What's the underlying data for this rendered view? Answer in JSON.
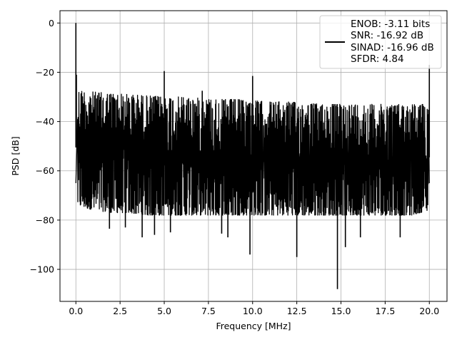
{
  "chart_data": {
    "type": "line",
    "title": "",
    "xlabel": "Frequency [MHz]",
    "ylabel": "PSD [dB]",
    "xlim": [
      -0.9,
      21.0
    ],
    "ylim": [
      -113,
      5
    ],
    "xticks": [
      0.0,
      2.5,
      5.0,
      7.5,
      10.0,
      12.5,
      15.0,
      17.5,
      20.0
    ],
    "xtick_labels": [
      "0.0",
      "2.5",
      "5.0",
      "7.5",
      "10.0",
      "12.5",
      "15.0",
      "17.5",
      "20.0"
    ],
    "yticks": [
      0,
      -20,
      -40,
      -60,
      -80,
      -100
    ],
    "ytick_labels": [
      "0",
      "−20",
      "−40",
      "−60",
      "−80",
      "−100"
    ],
    "grid": true,
    "legend_position": "top-right",
    "series": [
      {
        "name": "",
        "color": "#000000",
        "noise_band": {
          "x": [
            0.1,
            1,
            2,
            3,
            4,
            5,
            6,
            7,
            8,
            9,
            10,
            11,
            12,
            13,
            14,
            15,
            16,
            17,
            18,
            19,
            19.95
          ],
          "upper": [
            -27,
            -28,
            -28.5,
            -29,
            -29.5,
            -30,
            -30,
            -30.5,
            -31,
            -31,
            -31.5,
            -32,
            -32,
            -32.5,
            -33,
            -33,
            -33,
            -33,
            -33,
            -33,
            -33
          ],
          "lower": [
            -74,
            -76,
            -77,
            -77,
            -78,
            -78,
            -78,
            -78,
            -78,
            -78,
            -78,
            -78,
            -78,
            -78,
            -78,
            -78,
            -78,
            -78,
            -78,
            -78,
            -76
          ]
        },
        "spikes": [
          {
            "x": 0.0,
            "y": 0
          },
          {
            "x": 0.03,
            "y": -21
          },
          {
            "x": 5.0,
            "y": -19.5
          },
          {
            "x": 7.15,
            "y": -27.5
          },
          {
            "x": 10.0,
            "y": -21.5
          },
          {
            "x": 20.0,
            "y": -17
          },
          {
            "x": 1.9,
            "y": -83.5
          },
          {
            "x": 2.8,
            "y": -83
          },
          {
            "x": 3.75,
            "y": -87
          },
          {
            "x": 4.45,
            "y": -86
          },
          {
            "x": 5.35,
            "y": -85
          },
          {
            "x": 8.25,
            "y": -85.5
          },
          {
            "x": 8.6,
            "y": -87
          },
          {
            "x": 9.85,
            "y": -94
          },
          {
            "x": 12.5,
            "y": -95
          },
          {
            "x": 14.8,
            "y": -108
          },
          {
            "x": 15.25,
            "y": -91
          },
          {
            "x": 16.1,
            "y": -87
          },
          {
            "x": 18.35,
            "y": -87
          }
        ]
      }
    ],
    "legend": {
      "lines": [
        "ENOB: -3.11 bits",
        "SNR: -16.92 dB",
        "SINAD: -16.96 dB",
        "SFDR: 4.84"
      ]
    }
  }
}
